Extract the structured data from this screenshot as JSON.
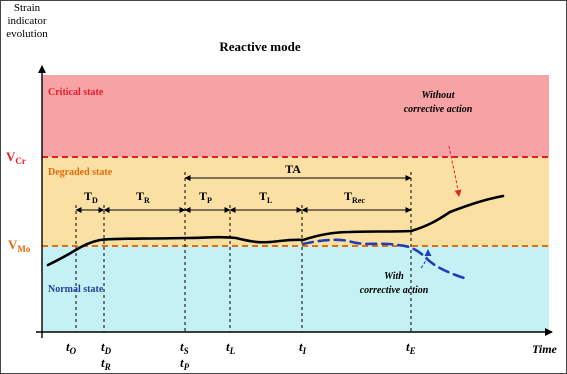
{
  "title": "Reactive mode",
  "y_axis_label": [
    "Strain",
    "indicator",
    "evolution"
  ],
  "x_axis_label": "Time",
  "zones": {
    "critical": {
      "label": "Critical state",
      "color": "#f7a3a6",
      "label_color": "#e81d27"
    },
    "degraded": {
      "label": "Degraded state",
      "color": "#fbe0a4",
      "label_color": "#e46c0a"
    },
    "normal": {
      "label": "Normal state",
      "color": "#c5f1f5",
      "label_color": "#1f3f9e"
    }
  },
  "thresholds": {
    "vcr": {
      "main": "V",
      "sub": "Cr",
      "color": "#e81d27"
    },
    "vmo": {
      "main": "V",
      "sub": "Mo",
      "color": "#e46c0a"
    }
  },
  "time_marks": [
    {
      "id": "tO",
      "main": "t",
      "sub": "O"
    },
    {
      "id": "tD",
      "main": "t",
      "sub": "D"
    },
    {
      "id": "tR",
      "main": "t",
      "sub": "R"
    },
    {
      "id": "tS",
      "main": "t",
      "sub": "S"
    },
    {
      "id": "tP",
      "main": "t",
      "sub": "P"
    },
    {
      "id": "tL",
      "main": "t",
      "sub": "L"
    },
    {
      "id": "tI",
      "main": "t",
      "sub": "I"
    },
    {
      "id": "tE",
      "main": "t",
      "sub": "E"
    }
  ],
  "intervals": [
    {
      "id": "TD",
      "main": "T",
      "sub": "D"
    },
    {
      "id": "TR",
      "main": "T",
      "sub": "R"
    },
    {
      "id": "TP",
      "main": "T",
      "sub": "P"
    },
    {
      "id": "TL",
      "main": "T",
      "sub": "L"
    },
    {
      "id": "TRec",
      "main": "T",
      "sub": "Rec"
    },
    {
      "id": "TA",
      "main": "TA",
      "sub": ""
    }
  ],
  "annotations": {
    "without": [
      "Without",
      "corrective action"
    ],
    "with": [
      "With",
      "corrective action"
    ]
  },
  "colors": {
    "curve": "#000000",
    "corrective_curve": "#1f3fb4",
    "without_arrow": "#e81d27",
    "with_arrow": "#1f3fb4"
  }
}
